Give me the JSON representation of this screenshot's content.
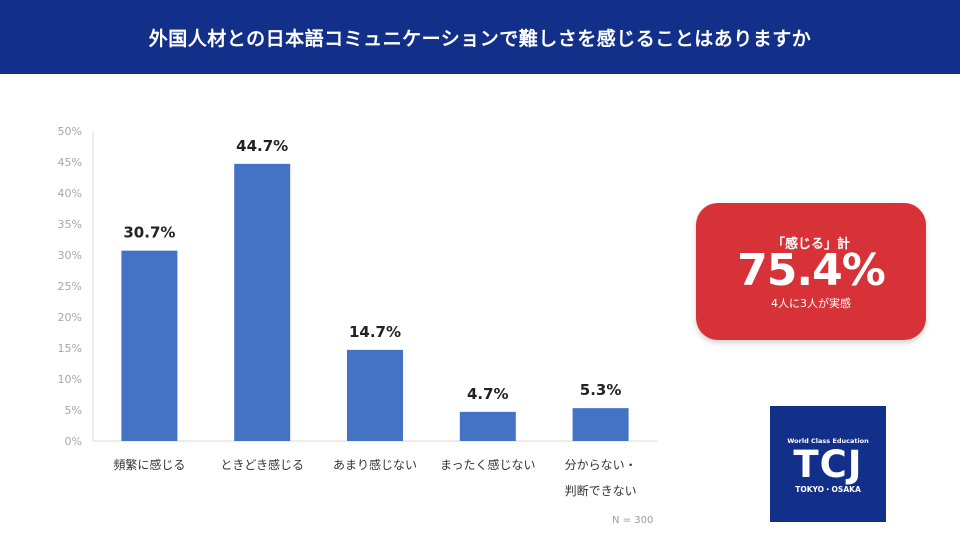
{
  "title": "外国人材との日本語コミュニケーションで難しさを感じることはありますか",
  "chart_data": {
    "type": "bar",
    "categories": [
      [
        "頻繁に感じる"
      ],
      [
        "ときどき感じる"
      ],
      [
        "あまり感じない"
      ],
      [
        "まったく感じない"
      ],
      [
        "分からない・",
        "判断できない"
      ]
    ],
    "values": [
      30.7,
      44.7,
      14.7,
      4.7,
      5.3
    ],
    "value_labels": [
      "30.7%",
      "44.7%",
      "14.7%",
      "4.7%",
      "5.3%"
    ],
    "ylim": [
      0,
      50
    ],
    "yticks": [
      "0%",
      "5%",
      "10%",
      "15%",
      "20%",
      "25%",
      "30%",
      "35%",
      "40%",
      "45%",
      "50%"
    ],
    "grid": false,
    "bar_color": "#4472c4"
  },
  "summary": {
    "label": "「感じる」計",
    "value": "75.4%",
    "sub": "4人に3人が実感",
    "color": "#d63238"
  },
  "note": "N = 300",
  "logo": {
    "top": "World Class Education",
    "main": "TCJ",
    "bottom": "TOKYO・OSAKA"
  }
}
